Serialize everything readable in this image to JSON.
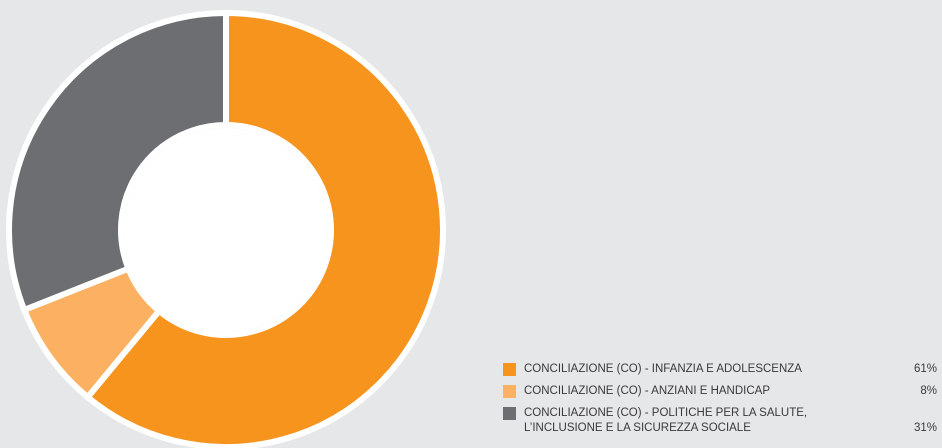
{
  "chart_data": {
    "type": "donut",
    "categories": [
      "CONCILIAZIONE (CO) - INFANZIA E ADOLESCENZA",
      "CONCILIAZIONE (CO) - ANZIANI E HANDICAP",
      "CONCILIAZIONE (CO) - POLITICHE PER LA SALUTE, L’INCLUSIONE E LA SICUREZZA SOCIALE"
    ],
    "values": [
      61,
      8,
      31
    ],
    "value_labels": [
      "61%",
      "8%",
      "31%"
    ],
    "colors": [
      "#f7941d",
      "#fbb161",
      "#6d6e71"
    ],
    "legend": "bottom-right"
  }
}
